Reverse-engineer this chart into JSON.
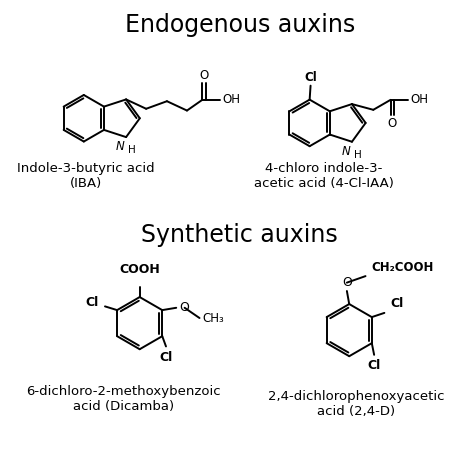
{
  "title_top": "Endogenous auxins",
  "title_bottom": "Synthetic auxins",
  "label_IBA": "Indole-3-butyric acid\n(IBA)",
  "label_4ClIAA": "4-chloro indole-3-\nacetic acid (4-Cl-IAA)",
  "label_Dicamba": "6-dichloro-2-methoxybenzoic\nacid (Dicamba)",
  "label_24D": "2,4-dichlorophenoxyacetic\nacid (2,4-D)",
  "bg_color": "#ffffff",
  "line_color": "#000000",
  "title_fontsize": 17,
  "label_fontsize": 9.5
}
